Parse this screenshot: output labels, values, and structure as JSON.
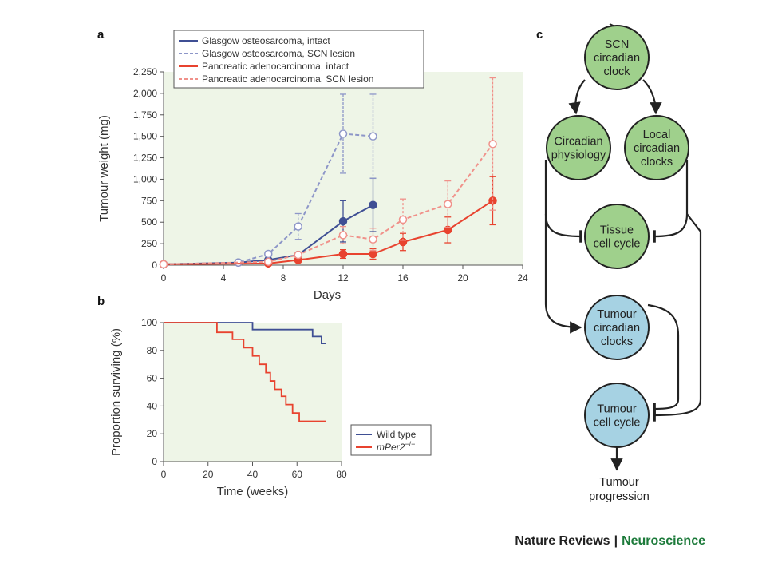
{
  "colors": {
    "navy": "#3f4f94",
    "navy_light": "#8d96c8",
    "red": "#e8432f",
    "red_light": "#f0918a",
    "node_green": "#9fd08c",
    "node_blue": "#a6d2e3",
    "plot_bg": "#eef5e7",
    "brand_green": "#1c7a3a"
  },
  "footer": {
    "brand": "Nature Reviews",
    "separator": "|",
    "journal": "Neuroscience"
  },
  "chart_data": [
    {
      "panel": "a",
      "type": "line",
      "xlabel": "Days",
      "ylabel": "Tumour weight (mg)",
      "xlim": [
        0,
        24
      ],
      "ylim": [
        0,
        2250
      ],
      "xticks": [
        0,
        4,
        8,
        12,
        16,
        20,
        24
      ],
      "yticks": [
        0,
        250,
        500,
        750,
        "1,000",
        "1,250",
        "1,500",
        "1,750",
        "2,000",
        "2,250"
      ],
      "legend_position": "top-left",
      "series": [
        {
          "name": "Glasgow osteosarcoma, intact",
          "style": "solid",
          "tone": "dark",
          "color": "navy",
          "x": [
            0,
            5,
            7,
            9,
            12,
            14
          ],
          "y": [
            10,
            30,
            60,
            120,
            510,
            700
          ],
          "err": [
            0,
            0,
            0,
            0,
            240,
            310
          ]
        },
        {
          "name": "Glasgow osteosarcoma, SCN lesion",
          "style": "dashed",
          "tone": "light",
          "color": "navy_light",
          "x": [
            0,
            5,
            7,
            9,
            12,
            14
          ],
          "y": [
            10,
            30,
            130,
            450,
            1530,
            1500
          ],
          "err": [
            0,
            0,
            30,
            150,
            460,
            490
          ]
        },
        {
          "name": "Pancreatic adenocarcinoma, intact",
          "style": "solid",
          "tone": "dark",
          "color": "red",
          "x": [
            0,
            7,
            9,
            12,
            14,
            16,
            19,
            22
          ],
          "y": [
            10,
            20,
            60,
            130,
            130,
            270,
            410,
            750
          ],
          "err": [
            0,
            0,
            0,
            50,
            60,
            100,
            150,
            280
          ]
        },
        {
          "name": "Pancreatic adenocarcinoma, SCN lesion",
          "style": "dashed",
          "tone": "light",
          "color": "red_light",
          "x": [
            0,
            7,
            9,
            12,
            14,
            16,
            19,
            22
          ],
          "y": [
            10,
            40,
            120,
            350,
            300,
            530,
            710,
            1410
          ],
          "err": [
            0,
            0,
            0,
            100,
            130,
            240,
            270,
            770
          ]
        }
      ]
    },
    {
      "panel": "b",
      "type": "line",
      "xlabel": "Time (weeks)",
      "ylabel": "Proportion surviving (%)",
      "xlim": [
        0,
        80
      ],
      "ylim": [
        0,
        100
      ],
      "xticks": [
        0,
        20,
        40,
        60,
        80
      ],
      "yticks": [
        0,
        20,
        40,
        60,
        80,
        100
      ],
      "legend_position": "bottom-right",
      "series": [
        {
          "name": "Wild type",
          "name_italic": "",
          "name_superscript": "",
          "color": "navy",
          "x": [
            0,
            40,
            40,
            67,
            67,
            71,
            71,
            73
          ],
          "y": [
            100,
            100,
            95,
            95,
            90,
            90,
            85,
            85
          ]
        },
        {
          "name": "",
          "name_italic": "mPer2",
          "name_superscript": "−/−",
          "color": "red",
          "x": [
            0,
            24,
            24,
            31,
            31,
            36,
            36,
            40,
            40,
            43,
            43,
            46,
            46,
            48,
            48,
            50,
            50,
            53,
            53,
            55,
            55,
            58,
            58,
            61,
            61,
            66,
            66,
            73
          ],
          "y": [
            100,
            100,
            93,
            93,
            88,
            88,
            82,
            82,
            76,
            76,
            70,
            70,
            64,
            64,
            58,
            58,
            52,
            52,
            47,
            47,
            41,
            41,
            35,
            35,
            29,
            29,
            29,
            29
          ]
        }
      ]
    }
  ],
  "diagram": {
    "panel": "c",
    "nodes": [
      {
        "id": "scn",
        "lines": [
          "SCN",
          "circadian",
          "clock"
        ],
        "fill": "node_green"
      },
      {
        "id": "phys",
        "lines": [
          "Circadian",
          "physiology"
        ],
        "fill": "node_green"
      },
      {
        "id": "local",
        "lines": [
          "Local",
          "circadian",
          "clocks"
        ],
        "fill": "node_green"
      },
      {
        "id": "tissue",
        "lines": [
          "Tissue",
          "cell cycle"
        ],
        "fill": "node_green"
      },
      {
        "id": "tclock",
        "lines": [
          "Tumour",
          "circadian",
          "clocks"
        ],
        "fill": "node_blue"
      },
      {
        "id": "tcycle",
        "lines": [
          "Tumour",
          "cell cycle"
        ],
        "fill": "node_blue"
      }
    ],
    "outcome": [
      "Tumour",
      "progression"
    ]
  }
}
